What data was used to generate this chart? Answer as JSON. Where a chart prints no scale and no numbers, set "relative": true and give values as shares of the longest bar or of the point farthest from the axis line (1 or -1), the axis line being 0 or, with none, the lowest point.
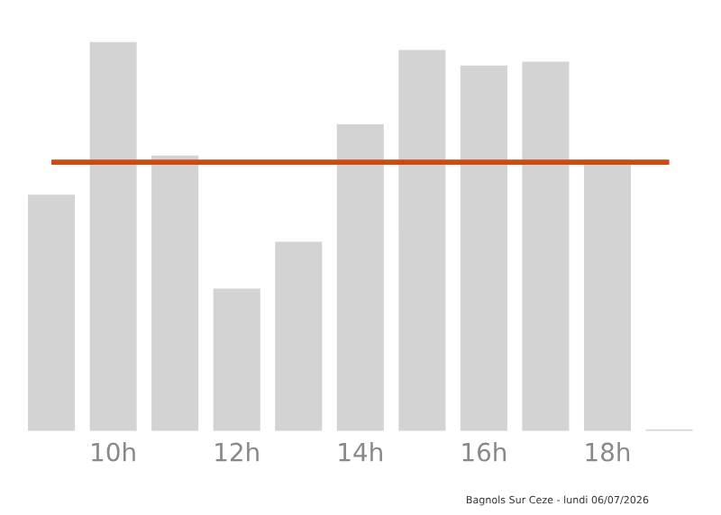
{
  "chart_data": {
    "type": "bar",
    "relative": true,
    "categories": [
      null,
      "10h",
      null,
      "12h",
      null,
      "14h",
      null,
      "16h",
      null,
      "18h",
      null
    ],
    "values": [
      0.61,
      1,
      0.71,
      0.37,
      0.49,
      0.79,
      0.98,
      0.94,
      0.95,
      0.7,
      0.01
    ],
    "color": "#d3d3d3",
    "ref_lines": [
      {
        "axis": "y",
        "value": 0.69,
        "color": "#cc4a14"
      }
    ],
    "annotations": [
      "Bagnols Sur Ceze - lundi 06/07/2026"
    ],
    "grid": false,
    "legend": false
  }
}
